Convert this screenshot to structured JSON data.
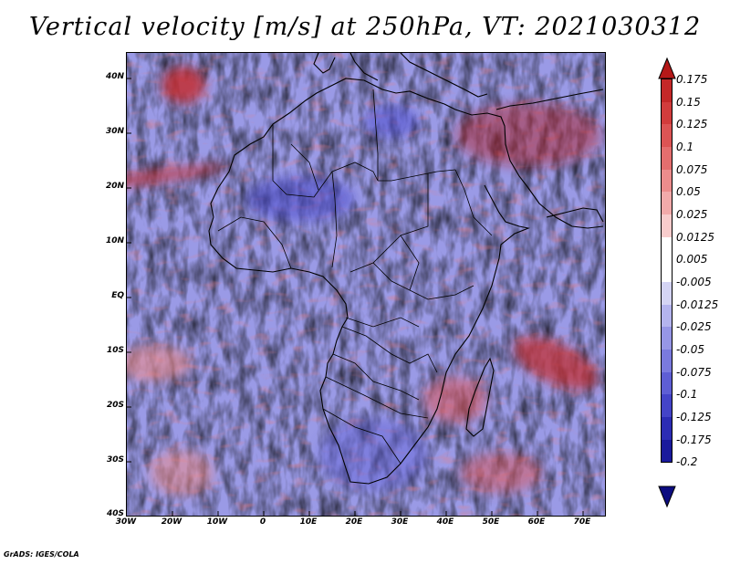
{
  "title": "Vertical velocity [m/s] at 250hPa, VT: 2021030312",
  "variable": "Vertical velocity",
  "units": "m/s",
  "level": "250hPa",
  "valid_time": "2021030312",
  "credit": "GrADS: IGES/COLA",
  "lat_labels": [
    "40N",
    "30N",
    "20N",
    "10N",
    "EQ",
    "10S",
    "20S",
    "30S",
    "40S"
  ],
  "lon_labels": [
    "30W",
    "20W",
    "10W",
    "0",
    "10E",
    "20E",
    "30E",
    "40E",
    "50E",
    "60E",
    "70E"
  ],
  "colorbar": {
    "labels": [
      "0.175",
      "0.15",
      "0.125",
      "0.1",
      "0.075",
      "0.05",
      "0.025",
      "0.0125",
      "0.005",
      "-0.005",
      "-0.0125",
      "-0.025",
      "-0.05",
      "-0.075",
      "-0.1",
      "-0.125",
      "-0.175",
      "-0.2"
    ],
    "colors": [
      "#b41818",
      "#c42828",
      "#d23c3c",
      "#dc5454",
      "#e46e6e",
      "#ec8c8c",
      "#f2aaaa",
      "#f8cccc",
      "#ffffff",
      "#ffffff",
      "#d4d4f4",
      "#b4b4ee",
      "#9696e6",
      "#7a7ade",
      "#5e5ed4",
      "#4444c8",
      "#2c2cb4",
      "#1a1a9c",
      "#0c0c80"
    ]
  }
}
